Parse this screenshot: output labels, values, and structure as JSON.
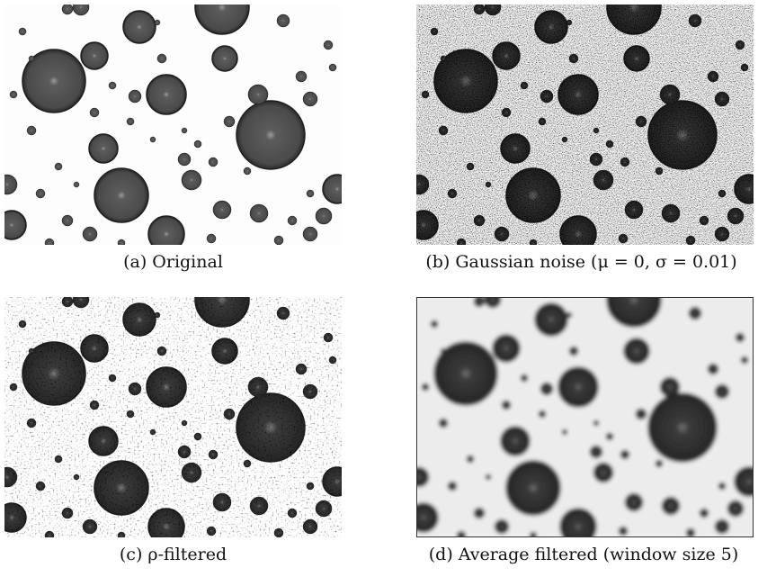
{
  "figure": {
    "panels": [
      {
        "caption": "(a) Original"
      },
      {
        "caption": "(b) Gaussian noise (μ = 0, σ = 0.01)"
      },
      {
        "caption": "(c) ρ-filtered"
      },
      {
        "caption": "(d) Average filtered (window size 5)"
      }
    ]
  }
}
